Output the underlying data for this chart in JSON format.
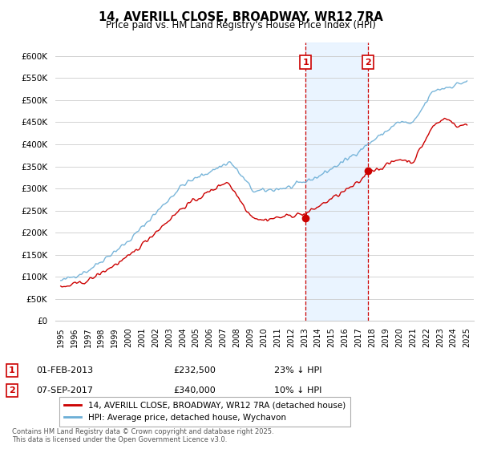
{
  "title": "14, AVERILL CLOSE, BROADWAY, WR12 7RA",
  "subtitle": "Price paid vs. HM Land Registry's House Price Index (HPI)",
  "price_paid_label": "14, AVERILL CLOSE, BROADWAY, WR12 7RA (detached house)",
  "hpi_label": "HPI: Average price, detached house, Wychavon",
  "price_paid_color": "#cc0000",
  "hpi_color": "#6baed6",
  "annotation1_year": 2013.08,
  "annotation2_year": 2017.67,
  "annotation1_date_str": "01-FEB-2013",
  "annotation1_price": 232500,
  "annotation1_text": "23% ↓ HPI",
  "annotation2_date_str": "07-SEP-2017",
  "annotation2_price": 340000,
  "annotation2_text": "10% ↓ HPI",
  "footnote": "Contains HM Land Registry data © Crown copyright and database right 2025.\nThis data is licensed under the Open Government Licence v3.0.",
  "ylim": [
    0,
    630000
  ],
  "yticks": [
    0,
    50000,
    100000,
    150000,
    200000,
    250000,
    300000,
    350000,
    400000,
    450000,
    500000,
    550000,
    600000
  ],
  "ytick_labels": [
    "£0",
    "£50K",
    "£100K",
    "£150K",
    "£200K",
    "£250K",
    "£300K",
    "£350K",
    "£400K",
    "£450K",
    "£500K",
    "£550K",
    "£600K"
  ],
  "background_color": "#ffffff",
  "grid_color": "#cccccc",
  "shade_color": "#ddeeff",
  "fig_width": 6.0,
  "fig_height": 5.6,
  "dpi": 100
}
